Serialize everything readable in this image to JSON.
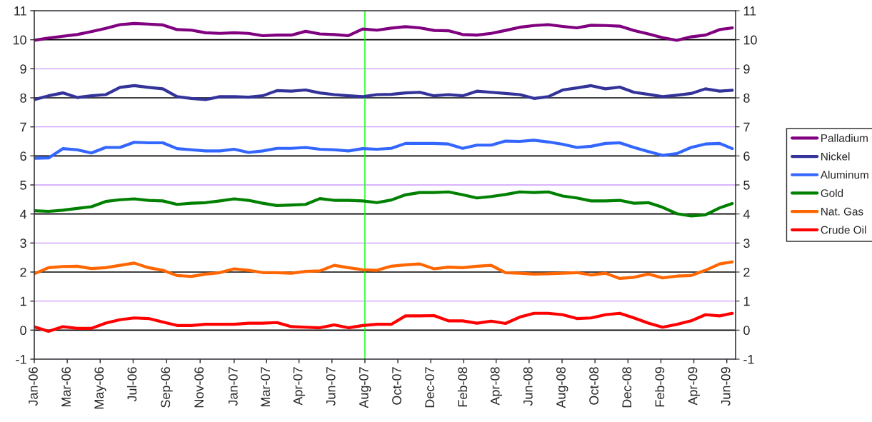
{
  "chart_data": {
    "type": "line",
    "x": [
      "2006-01-03",
      "2006-01-29",
      "2006-02-24",
      "2006-03-22",
      "2006-04-17",
      "2006-05-13",
      "2006-06-08",
      "2006-07-04",
      "2006-07-30",
      "2006-08-25",
      "2006-09-20",
      "2006-10-16",
      "2006-11-11",
      "2006-12-07",
      "2007-01-02",
      "2007-01-28",
      "2007-02-23",
      "2007-03-21",
      "2007-04-16",
      "2007-05-12",
      "2007-06-07",
      "2007-07-03",
      "2007-07-29",
      "2007-08-24",
      "2007-09-19",
      "2007-10-15",
      "2007-11-10",
      "2007-12-06",
      "2008-01-01",
      "2008-01-27",
      "2008-02-22",
      "2008-03-19",
      "2008-04-14",
      "2008-05-10",
      "2008-06-05",
      "2008-07-01",
      "2008-07-27",
      "2008-08-22",
      "2008-09-17",
      "2008-10-13",
      "2008-11-08",
      "2008-12-04",
      "2008-12-30",
      "2009-01-25",
      "2009-02-20",
      "2009-03-18",
      "2009-04-13",
      "2009-05-09",
      "2009-06-04",
      "2009-06-27"
    ],
    "series": [
      {
        "name": "Palladium",
        "color": "#800080",
        "values": [
          9.98,
          10.06,
          10.12,
          10.18,
          10.28,
          10.39,
          10.52,
          10.56,
          10.54,
          10.51,
          10.35,
          10.33,
          10.24,
          10.22,
          10.24,
          10.22,
          10.14,
          10.16,
          10.16,
          10.29,
          10.2,
          10.18,
          10.14,
          10.37,
          10.33,
          10.4,
          10.45,
          10.41,
          10.32,
          10.31,
          10.18,
          10.16,
          10.22,
          10.32,
          10.43,
          10.49,
          10.52,
          10.46,
          10.41,
          10.5,
          10.49,
          10.47,
          10.32,
          10.2,
          10.07,
          9.98,
          10.1,
          10.16,
          10.35,
          10.41
        ]
      },
      {
        "name": "Nickel",
        "color": "#333399",
        "values": [
          7.94,
          8.07,
          8.17,
          8.01,
          8.07,
          8.11,
          8.36,
          8.42,
          8.36,
          8.31,
          8.04,
          7.98,
          7.94,
          8.04,
          8.04,
          8.02,
          8.07,
          8.25,
          8.23,
          8.27,
          8.17,
          8.11,
          8.07,
          8.04,
          8.11,
          8.12,
          8.17,
          8.19,
          8.07,
          8.11,
          8.07,
          8.23,
          8.19,
          8.15,
          8.11,
          7.98,
          8.04,
          8.27,
          8.34,
          8.42,
          8.31,
          8.37,
          8.19,
          8.12,
          8.04,
          8.09,
          8.15,
          8.31,
          8.23,
          8.26
        ]
      },
      {
        "name": "Aluminum",
        "color": "#3366ff",
        "values": [
          5.92,
          5.93,
          6.25,
          6.21,
          6.1,
          6.29,
          6.29,
          6.47,
          6.45,
          6.45,
          6.25,
          6.21,
          6.17,
          6.17,
          6.23,
          6.12,
          6.17,
          6.26,
          6.26,
          6.29,
          6.23,
          6.21,
          6.17,
          6.25,
          6.23,
          6.26,
          6.43,
          6.43,
          6.43,
          6.41,
          6.26,
          6.37,
          6.37,
          6.51,
          6.5,
          6.54,
          6.48,
          6.4,
          6.29,
          6.33,
          6.43,
          6.45,
          6.29,
          6.15,
          6.02,
          6.08,
          6.29,
          6.41,
          6.43,
          6.25
        ]
      },
      {
        "name": "Gold",
        "color": "#008000",
        "values": [
          4.11,
          4.09,
          4.13,
          4.19,
          4.25,
          4.43,
          4.49,
          4.52,
          4.47,
          4.45,
          4.33,
          4.37,
          4.39,
          4.45,
          4.52,
          4.47,
          4.37,
          4.29,
          4.31,
          4.33,
          4.53,
          4.47,
          4.47,
          4.45,
          4.39,
          4.48,
          4.66,
          4.74,
          4.74,
          4.76,
          4.66,
          4.55,
          4.6,
          4.67,
          4.76,
          4.74,
          4.76,
          4.62,
          4.55,
          4.45,
          4.45,
          4.47,
          4.37,
          4.39,
          4.23,
          4.01,
          3.93,
          3.97,
          4.21,
          4.36
        ]
      },
      {
        "name": "Nat. Gas",
        "color": "#ff6600",
        "values": [
          1.94,
          2.15,
          2.19,
          2.2,
          2.12,
          2.15,
          2.23,
          2.31,
          2.15,
          2.06,
          1.88,
          1.85,
          1.93,
          1.98,
          2.11,
          2.06,
          1.98,
          1.98,
          1.96,
          2.02,
          2.04,
          2.23,
          2.15,
          2.08,
          2.06,
          2.2,
          2.25,
          2.28,
          2.11,
          2.17,
          2.15,
          2.2,
          2.23,
          1.98,
          1.96,
          1.93,
          1.94,
          1.96,
          1.98,
          1.9,
          1.96,
          1.78,
          1.82,
          1.93,
          1.8,
          1.86,
          1.88,
          2.06,
          2.28,
          2.35
        ]
      },
      {
        "name": "Crude Oil",
        "color": "#ff0000",
        "values": [
          0.11,
          -0.04,
          0.12,
          0.06,
          0.06,
          0.24,
          0.36,
          0.42,
          0.4,
          0.28,
          0.16,
          0.16,
          0.2,
          0.2,
          0.2,
          0.24,
          0.24,
          0.26,
          0.12,
          0.1,
          0.08,
          0.18,
          0.08,
          0.16,
          0.2,
          0.2,
          0.49,
          0.49,
          0.5,
          0.32,
          0.32,
          0.24,
          0.31,
          0.23,
          0.45,
          0.58,
          0.58,
          0.53,
          0.4,
          0.42,
          0.53,
          0.58,
          0.42,
          0.24,
          0.1,
          0.2,
          0.32,
          0.53,
          0.49,
          0.58
        ]
      }
    ],
    "xlim": [
      "2006-01-03",
      "2009-07-03"
    ],
    "xticks": [
      {
        "value": "2006-01-03",
        "label": "Jan-06"
      },
      {
        "value": "2006-03-04",
        "label": "Mar-06"
      },
      {
        "value": "2006-05-03",
        "label": "May-06"
      },
      {
        "value": "2006-07-02",
        "label": "Jul-06"
      },
      {
        "value": "2006-09-01",
        "label": "Sep-06"
      },
      {
        "value": "2006-11-01",
        "label": "Nov-06"
      },
      {
        "value": "2007-01-02",
        "label": "Jan-07"
      },
      {
        "value": "2007-03-02",
        "label": "Mar-07"
      },
      {
        "value": "2007-04-30",
        "label": "Apr-07"
      },
      {
        "value": "2007-06-29",
        "label": "Jun-07"
      },
      {
        "value": "2007-08-28",
        "label": "Aug-07"
      },
      {
        "value": "2007-10-27",
        "label": "Oct-07"
      },
      {
        "value": "2007-12-26",
        "label": "Dec-07"
      },
      {
        "value": "2008-02-24",
        "label": "Feb-08"
      },
      {
        "value": "2008-04-23",
        "label": "Apr-08"
      },
      {
        "value": "2008-06-22",
        "label": "Jun-08"
      },
      {
        "value": "2008-08-21",
        "label": "Aug-08"
      },
      {
        "value": "2008-10-20",
        "label": "Oct-08"
      },
      {
        "value": "2008-12-19",
        "label": "Dec-08"
      },
      {
        "value": "2009-02-17",
        "label": "Feb-09"
      },
      {
        "value": "2009-04-18",
        "label": "Apr-09"
      },
      {
        "value": "2009-06-17",
        "label": "Jun-09"
      }
    ],
    "ylim": [
      -1,
      11
    ],
    "yticks": [
      -1,
      0,
      1,
      2,
      3,
      4,
      5,
      6,
      7,
      8,
      9,
      10,
      11
    ],
    "y2lim": [
      -1,
      11
    ],
    "y2ticks": [
      -1,
      0,
      1,
      2,
      3,
      4,
      5,
      6,
      7,
      8,
      9,
      10,
      11
    ],
    "grid": "y",
    "legend": "right",
    "marker": "none",
    "line_style": "solid",
    "ref_lines": [
      {
        "axis": "x",
        "value": "2007-08-28",
        "color": "#00ff00"
      }
    ]
  }
}
